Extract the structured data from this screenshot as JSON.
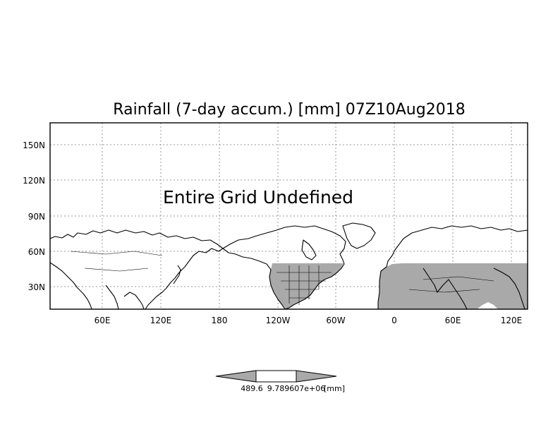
{
  "title": "Rainfall (7-day accum.) [mm] 07Z10Aug2018",
  "overlay_message": "Entire Grid Undefined",
  "lat_ticks": [
    "150N",
    "120N",
    "90N",
    "60N",
    "30N"
  ],
  "lon_ticks": [
    "60E",
    "120E",
    "180",
    "120W",
    "60W",
    "0",
    "60E",
    "120E"
  ],
  "colorbar": {
    "label_left": "489.6",
    "label_right": "9.789607e+06",
    "units": "[mm]"
  },
  "colors": {
    "land_shading": "#a9a9a9",
    "coastline": "#000000",
    "grid": "#9a9a9a",
    "frame": "#000000",
    "colorbar_fill": "#a9a9a9"
  }
}
